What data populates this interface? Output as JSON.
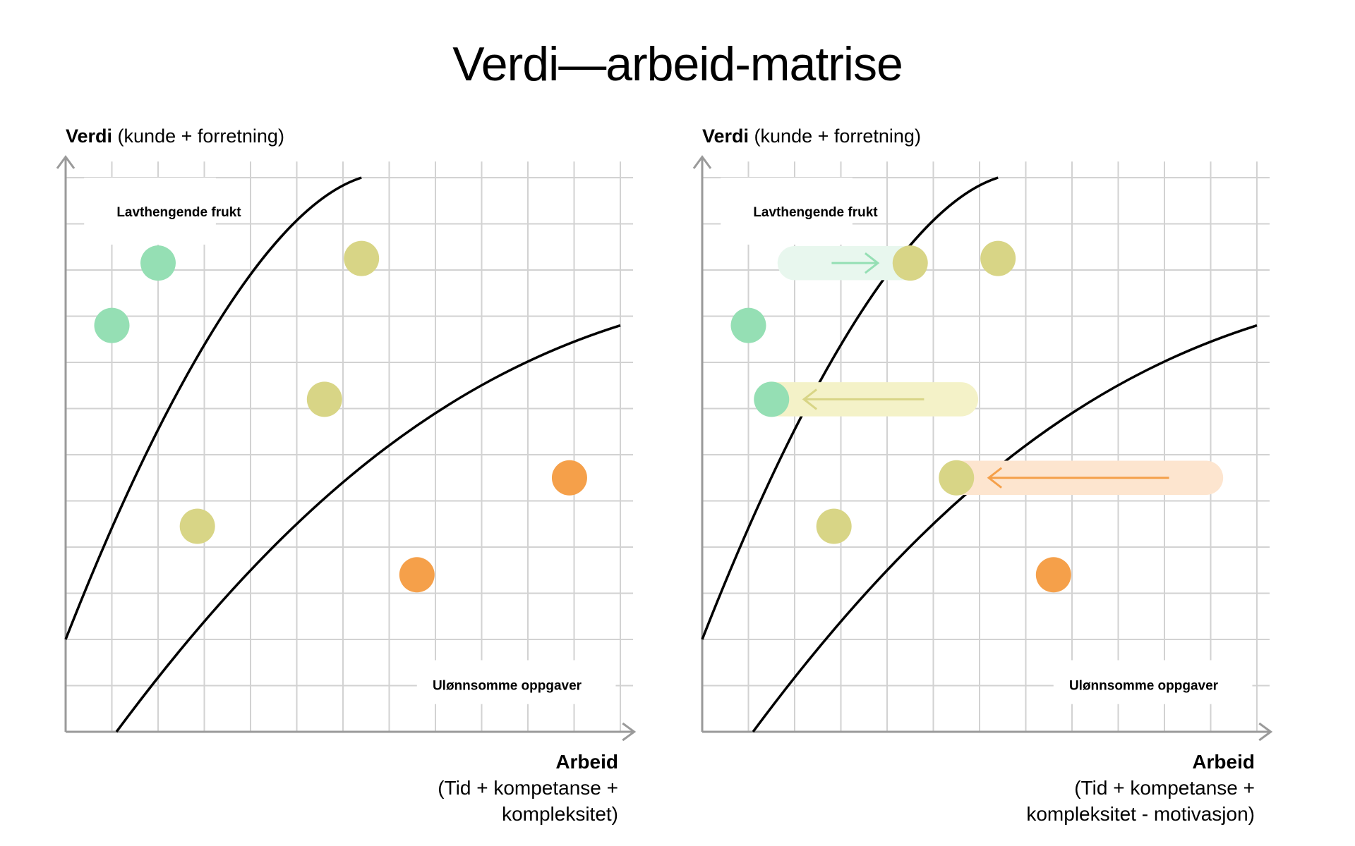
{
  "title": "Verdi—arbeid-matrise",
  "colors": {
    "grid": "#d2d2d2",
    "axis": "#9a9a9a",
    "curve": "#000000",
    "green": "#95dfb4",
    "yellow": "#d8d586",
    "orange": "#f5a04a",
    "green_band": "#e8f7ee",
    "yellow_band": "#f4f2c8",
    "orange_band": "#fde5cf"
  },
  "panels": [
    {
      "y_axis": {
        "bold": "Verdi",
        "rest": " (kunde + forretning)"
      },
      "x_axis": {
        "title": "Arbeid",
        "line1": "(Tid + kompetanse +",
        "line2": "kompleksitet)"
      },
      "regions": {
        "top_left": "Lavthengende frukt",
        "bottom_right": "Ulønnsomme oppgaver"
      },
      "points": [
        {
          "x": 1.0,
          "y": 8.8,
          "color": "green"
        },
        {
          "x": 2.0,
          "y": 10.15,
          "color": "green"
        },
        {
          "x": 6.4,
          "y": 10.25,
          "color": "yellow"
        },
        {
          "x": 5.6,
          "y": 7.2,
          "color": "yellow"
        },
        {
          "x": 2.85,
          "y": 4.45,
          "color": "yellow"
        },
        {
          "x": 10.9,
          "y": 5.5,
          "color": "orange"
        },
        {
          "x": 7.6,
          "y": 3.4,
          "color": "orange"
        }
      ],
      "moves": []
    },
    {
      "y_axis": {
        "bold": "Verdi",
        "rest": " (kunde + forretning)"
      },
      "x_axis": {
        "title": "Arbeid",
        "line1": "(Tid + kompetanse +",
        "line2": "kompleksitet - motivasjon)"
      },
      "regions": {
        "top_left": "Lavthengende frukt",
        "bottom_right": "Ulønnsomme oppgaver"
      },
      "points": [
        {
          "x": 1.0,
          "y": 8.8,
          "color": "green"
        },
        {
          "x": 4.5,
          "y": 10.15,
          "color": "yellow"
        },
        {
          "x": 6.4,
          "y": 10.25,
          "color": "yellow"
        },
        {
          "x": 1.5,
          "y": 7.2,
          "color": "green"
        },
        {
          "x": 2.85,
          "y": 4.45,
          "color": "yellow"
        },
        {
          "x": 5.5,
          "y": 5.5,
          "color": "yellow"
        },
        {
          "x": 7.6,
          "y": 3.4,
          "color": "orange"
        }
      ],
      "moves": [
        {
          "from_x": 2.0,
          "to_x": 4.5,
          "y": 10.15,
          "band": "green_band",
          "arrow": "green"
        },
        {
          "from_x": 5.6,
          "to_x": 1.5,
          "y": 7.2,
          "band": "yellow_band",
          "arrow": "yellow"
        },
        {
          "from_x": 10.9,
          "to_x": 5.5,
          "y": 5.5,
          "band": "orange_band",
          "arrow": "orange"
        }
      ]
    }
  ]
}
